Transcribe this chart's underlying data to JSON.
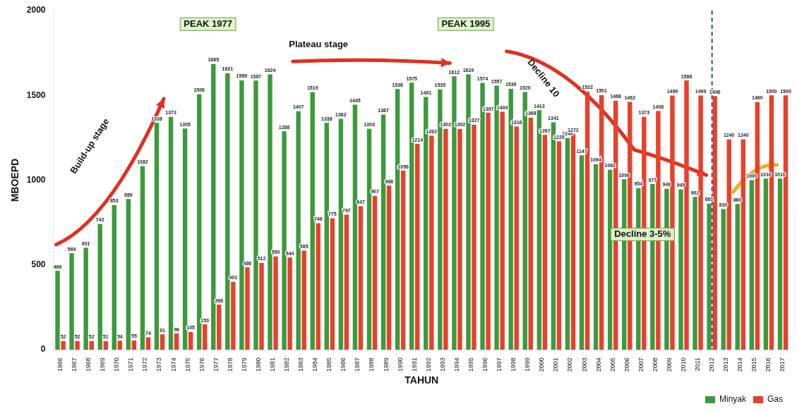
{
  "chart_data": {
    "type": "bar",
    "xlabel": "TAHUN",
    "ylabel": "MBOEPD",
    "categories": [
      "1966",
      "1967",
      "1968",
      "1969",
      "1970",
      "1971",
      "1972",
      "1973",
      "1974",
      "1975",
      "1976",
      "1977",
      "1978",
      "1979",
      "1980",
      "1981",
      "1982",
      "1983",
      "1984",
      "1985",
      "1986",
      "1987",
      "1988",
      "1989",
      "1990",
      "1991",
      "1992",
      "1993",
      "1994",
      "1995",
      "1996",
      "1997",
      "1998",
      "1999",
      "2000",
      "2001",
      "2002",
      "2003",
      "2004",
      "2005",
      "2006",
      "2007",
      "2008",
      "2009",
      "2010",
      "2011",
      "2012",
      "2013",
      "2014",
      "2015",
      "2016",
      "2017"
    ],
    "series": [
      {
        "name": "Minyak",
        "color": "#3c9a3c",
        "values": [
          466,
          569,
          601,
          742,
          853,
          889,
          1082,
          1338,
          1373,
          1305,
          1506,
          1685,
          1631,
          1589,
          1587,
          1624,
          1288,
          1407,
          1519,
          1338,
          1362,
          1445,
          1303,
          1387,
          1538,
          1575,
          1491,
          1535,
          1612,
          1624,
          1574,
          1557,
          1539,
          1520,
          1413,
          1341,
          1249,
          1147,
          1094,
          1062,
          1006,
          954,
          977,
          949,
          945,
          902,
          861,
          830,
          860,
          1000,
          1010,
          1010
        ]
      },
      {
        "name": "Gas",
        "color": "#e8402a",
        "values": [
          52,
          52,
          52,
          51,
          54,
          55,
          74,
          91,
          96,
          105,
          150,
          266,
          401,
          486,
          512,
          550,
          544,
          585,
          746,
          775,
          797,
          847,
          907,
          968,
          1056,
          1214,
          1262,
          1302,
          1302,
          1327,
          1397,
          1404,
          1316,
          1368,
          1267,
          1229,
          1272,
          1522,
          1501,
          1468,
          1462,
          1373,
          1408,
          1499,
          1588,
          1499,
          1496,
          1240,
          1240,
          1460,
          1500,
          1500
        ]
      }
    ],
    "ylim": [
      0,
      2000
    ],
    "yticks": [
      0,
      500,
      1000,
      1500,
      2000
    ],
    "grid": false,
    "legend": "bottom right",
    "data_labels": true,
    "ref_lines": [
      {
        "axis": "x",
        "value": "2012",
        "color": "#2a4fb0",
        "line_style": "dashed"
      }
    ],
    "annotations": [
      "PEAK 1977",
      "PEAK 1995",
      "Build-up stage",
      "Plateau stage",
      "Decline 10",
      "Decline 3-5%"
    ]
  }
}
